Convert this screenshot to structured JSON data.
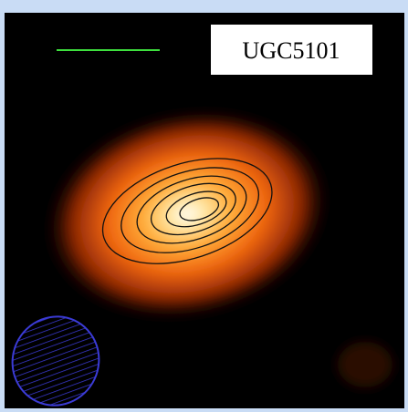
{
  "label": "UGC5101"
}
